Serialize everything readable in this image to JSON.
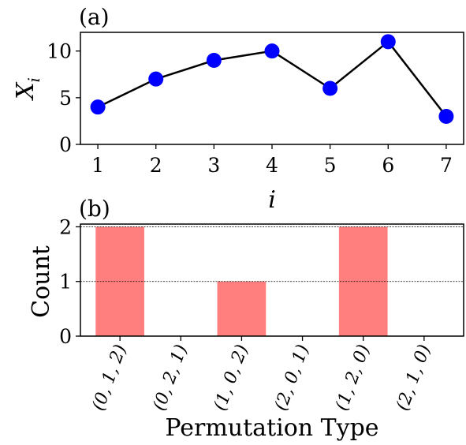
{
  "chart_data": [
    {
      "type": "line",
      "panel_label": "(a)",
      "x": [
        1,
        2,
        3,
        4,
        5,
        6,
        7
      ],
      "values": [
        4,
        7,
        9,
        10,
        6,
        11,
        3
      ],
      "xlabel": "i",
      "ylabel": "X",
      "ylabel_subscript": "i",
      "xlim": [
        0.7,
        7.3
      ],
      "ylim": [
        0,
        12
      ],
      "xticks": [
        1,
        2,
        3,
        4,
        5,
        6,
        7
      ],
      "yticks": [
        0,
        5,
        10
      ],
      "grid": false,
      "line_color": "#000000",
      "marker_color": "#0000ff"
    },
    {
      "type": "bar",
      "panel_label": "(b)",
      "categories": [
        "(0, 1, 2)",
        "(0, 2, 1)",
        "(1, 0, 2)",
        "(2, 0, 1)",
        "(1, 2, 0)",
        "(2, 1, 0)"
      ],
      "values": [
        2,
        0,
        1,
        0,
        2,
        0
      ],
      "xlabel": "Permutation Type",
      "ylabel": "Count",
      "ylim": [
        0,
        2.05
      ],
      "yticks": [
        0,
        1,
        2
      ],
      "grid": true,
      "grid_lines": [
        1,
        2
      ],
      "bar_color": "#ff7f7f"
    }
  ]
}
